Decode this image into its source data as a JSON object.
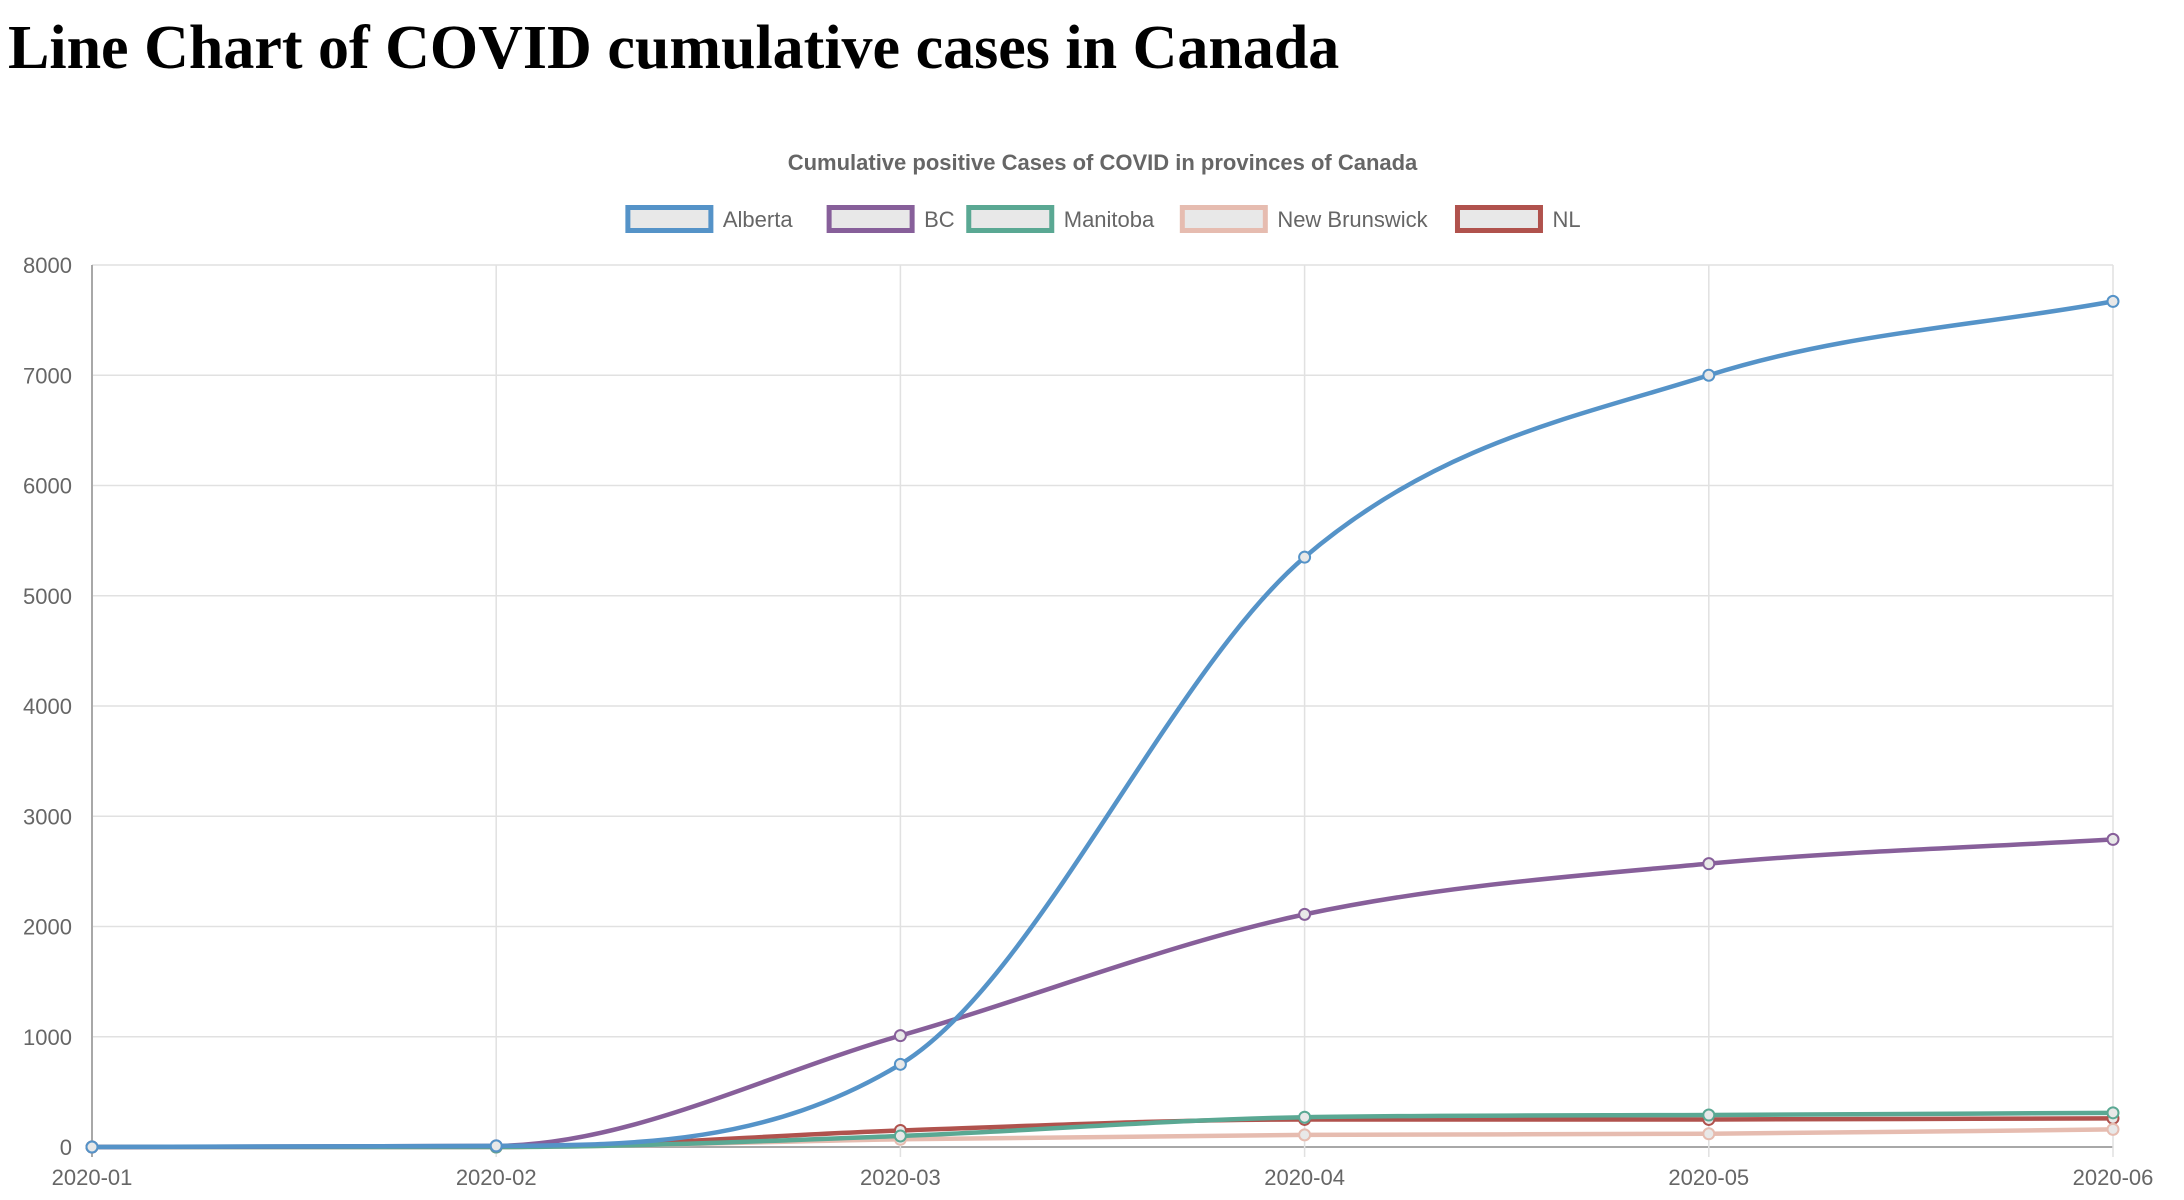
{
  "page": {
    "title": "Line Chart of COVID cumulative cases in Canada"
  },
  "chart_data": {
    "type": "line",
    "title": "Cumulative positive Cases of COVID in provinces of Canada",
    "xlabel": "",
    "ylabel": "",
    "categories": [
      "2020-01",
      "2020-02",
      "2020-03",
      "2020-04",
      "2020-05",
      "2020-06"
    ],
    "ylim": [
      0,
      8000
    ],
    "yticks": [
      0,
      1000,
      2000,
      3000,
      4000,
      5000,
      6000,
      7000,
      8000
    ],
    "grid": true,
    "legend_position": "top",
    "series": [
      {
        "name": "Alberta",
        "color": "#5593c8",
        "values": [
          0,
          10,
          750,
          5350,
          7000,
          7670
        ]
      },
      {
        "name": "BC",
        "color": "#875f9a",
        "values": [
          0,
          10,
          1010,
          2110,
          2570,
          2790
        ]
      },
      {
        "name": "Manitoba",
        "color": "#5aa893",
        "values": [
          0,
          0,
          100,
          270,
          290,
          310
        ]
      },
      {
        "name": "New Brunswick",
        "color": "#e6bcb0",
        "values": [
          0,
          0,
          70,
          110,
          120,
          160
        ]
      },
      {
        "name": "NL",
        "color": "#b0524d",
        "values": [
          0,
          0,
          150,
          250,
          250,
          260
        ]
      }
    ]
  }
}
